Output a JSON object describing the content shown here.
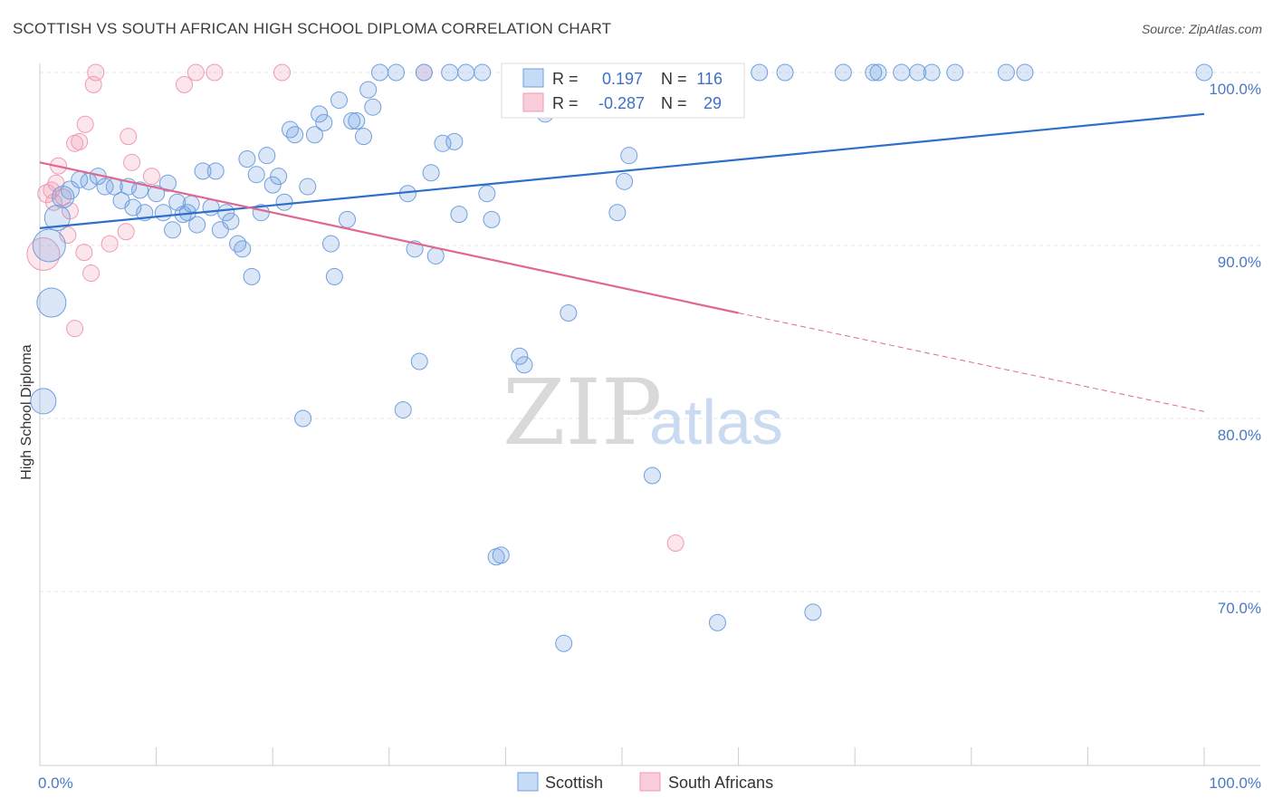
{
  "title": "SCOTTISH VS SOUTH AFRICAN HIGH SCHOOL DIPLOMA CORRELATION CHART",
  "source": "Source: ZipAtlas.com",
  "watermark": {
    "zip": "ZIP",
    "atlas": "atlas"
  },
  "colors": {
    "scottish": "#6f9fe0",
    "scottish_line": "#2f6fcc",
    "south_african": "#f09ab4",
    "south_african_line": "#e06890",
    "tick": "#4a79c8"
  },
  "chart_data": {
    "type": "scatter",
    "title": "SCOTTISH VS SOUTH AFRICAN HIGH SCHOOL DIPLOMA CORRELATION CHART",
    "xlabel": "",
    "ylabel": "High School Diploma",
    "xlim": [
      0,
      100
    ],
    "ylim": [
      60,
      100
    ],
    "x_tick_labels": [
      "0.0%",
      "100.0%"
    ],
    "y_ticks": [
      100,
      90,
      80,
      70
    ],
    "y_tick_labels": [
      "100.0%",
      "90.0%",
      "80.0%",
      "70.0%"
    ],
    "grid": true,
    "legend": {
      "placement": "top-center",
      "rows": [
        {
          "r_label": "R =",
          "r_value": "0.197",
          "n_label": "N =",
          "n_value": "116"
        },
        {
          "r_label": "R =",
          "r_value": "-0.287",
          "n_label": "N =",
          "n_value": "29"
        }
      ]
    },
    "series": [
      {
        "name": "Scottish",
        "trend": {
          "x": [
            0,
            100
          ],
          "y": [
            91.0,
            97.6
          ]
        },
        "points": [
          [
            0.3,
            81.0,
            14
          ],
          [
            0.8,
            90.0,
            18
          ],
          [
            1.0,
            86.7,
            16
          ],
          [
            1.5,
            91.6,
            14
          ],
          [
            2.0,
            92.8,
            12
          ],
          [
            2.6,
            93.2,
            10
          ],
          [
            3.4,
            93.8,
            9
          ],
          [
            4.2,
            93.7,
            9
          ],
          [
            5.0,
            94.0,
            9
          ],
          [
            5.6,
            93.4,
            9
          ],
          [
            6.4,
            93.4,
            9
          ],
          [
            7.0,
            92.6,
            9
          ],
          [
            7.6,
            93.4,
            9
          ],
          [
            8.0,
            92.2,
            9
          ],
          [
            8.6,
            93.2,
            9
          ],
          [
            9.0,
            91.9,
            9
          ],
          [
            10.0,
            93.0,
            9
          ],
          [
            10.6,
            91.9,
            9
          ],
          [
            11.0,
            93.6,
            9
          ],
          [
            11.4,
            90.9,
            9
          ],
          [
            11.8,
            92.5,
            9
          ],
          [
            12.3,
            91.8,
            9
          ],
          [
            12.7,
            91.9,
            9
          ],
          [
            13.0,
            92.4,
            9
          ],
          [
            13.5,
            91.2,
            9
          ],
          [
            14.0,
            94.3,
            9
          ],
          [
            14.7,
            92.2,
            9
          ],
          [
            15.1,
            94.3,
            9
          ],
          [
            15.5,
            90.9,
            9
          ],
          [
            16.0,
            91.9,
            9
          ],
          [
            16.4,
            91.4,
            9
          ],
          [
            17.0,
            90.1,
            9
          ],
          [
            17.4,
            89.8,
            9
          ],
          [
            17.8,
            95.0,
            9
          ],
          [
            18.2,
            88.2,
            9
          ],
          [
            18.6,
            94.1,
            9
          ],
          [
            19.0,
            91.9,
            9
          ],
          [
            19.5,
            95.2,
            9
          ],
          [
            20.0,
            93.5,
            9
          ],
          [
            20.5,
            94.0,
            9
          ],
          [
            21.0,
            92.5,
            9
          ],
          [
            21.5,
            96.7,
            9
          ],
          [
            21.9,
            96.4,
            9
          ],
          [
            22.6,
            80.0,
            9
          ],
          [
            23.0,
            93.4,
            9
          ],
          [
            23.6,
            96.4,
            9
          ],
          [
            24.0,
            97.6,
            9
          ],
          [
            24.4,
            97.1,
            9
          ],
          [
            25.0,
            90.1,
            9
          ],
          [
            25.3,
            88.2,
            9
          ],
          [
            25.7,
            98.4,
            9
          ],
          [
            26.4,
            91.5,
            9
          ],
          [
            26.8,
            97.2,
            9
          ],
          [
            27.2,
            97.2,
            9
          ],
          [
            27.8,
            96.3,
            9
          ],
          [
            28.2,
            99.0,
            9
          ],
          [
            28.6,
            98.0,
            9
          ],
          [
            29.2,
            100.0,
            9
          ],
          [
            30.6,
            100.0,
            9
          ],
          [
            31.2,
            80.5,
            9
          ],
          [
            31.6,
            93.0,
            9
          ],
          [
            32.2,
            89.8,
            9
          ],
          [
            32.6,
            83.3,
            9
          ],
          [
            33.0,
            100.0,
            9
          ],
          [
            33.6,
            94.2,
            9
          ],
          [
            34.0,
            89.4,
            9
          ],
          [
            34.6,
            95.9,
            9
          ],
          [
            35.2,
            100.0,
            9
          ],
          [
            35.6,
            96.0,
            9
          ],
          [
            36.0,
            91.8,
            9
          ],
          [
            36.6,
            100.0,
            9
          ],
          [
            38.0,
            100.0,
            9
          ],
          [
            38.4,
            93.0,
            9
          ],
          [
            38.8,
            91.5,
            9
          ],
          [
            39.2,
            72.0,
            9
          ],
          [
            39.6,
            72.1,
            9
          ],
          [
            40.8,
            100.0,
            9
          ],
          [
            41.2,
            83.6,
            9
          ],
          [
            41.6,
            83.1,
            9
          ],
          [
            42.8,
            100.0,
            9
          ],
          [
            43.4,
            97.6,
            9
          ],
          [
            44.0,
            100.0,
            9
          ],
          [
            45.0,
            67.0,
            9
          ],
          [
            45.4,
            86.1,
            9
          ],
          [
            46.0,
            100.0,
            9
          ],
          [
            46.8,
            100.0,
            9
          ],
          [
            48.0,
            100.0,
            9
          ],
          [
            49.0,
            97.9,
            9
          ],
          [
            49.6,
            91.9,
            9
          ],
          [
            50.6,
            95.2,
            9
          ],
          [
            50.2,
            93.7,
            9
          ],
          [
            52.0,
            100.0,
            9
          ],
          [
            52.6,
            76.7,
            9
          ],
          [
            53.6,
            100.0,
            9
          ],
          [
            55.2,
            100.0,
            9
          ],
          [
            56.0,
            100.0,
            9
          ],
          [
            58.2,
            68.2,
            9
          ],
          [
            59.4,
            100.0,
            9
          ],
          [
            61.8,
            100.0,
            9
          ],
          [
            64.0,
            100.0,
            9
          ],
          [
            66.4,
            68.8,
            9
          ],
          [
            69.0,
            100.0,
            9
          ],
          [
            71.6,
            100.0,
            9
          ],
          [
            72.0,
            100.0,
            9
          ],
          [
            74.0,
            100.0,
            9
          ],
          [
            75.4,
            100.0,
            9
          ],
          [
            76.6,
            100.0,
            9
          ],
          [
            78.6,
            100.0,
            9
          ],
          [
            83.0,
            100.0,
            9
          ],
          [
            84.6,
            100.0,
            9
          ],
          [
            100.0,
            100.0,
            9
          ],
          [
            43.2,
            98.4,
            9
          ],
          [
            47.4,
            100.0,
            9
          ],
          [
            56.8,
            100.0,
            9
          ],
          [
            51.2,
            100.0,
            9
          ],
          [
            42.6,
            100.0,
            9
          ]
        ]
      },
      {
        "name": "South Africans",
        "trend": {
          "x": [
            0,
            60
          ],
          "y": [
            94.8,
            86.1
          ]
        },
        "trend_dashed": {
          "x": [
            60,
            100
          ],
          "y": [
            86.1,
            80.4
          ]
        },
        "points": [
          [
            0.3,
            89.5,
            18
          ],
          [
            0.6,
            93.0,
            10
          ],
          [
            1.0,
            93.2,
            9
          ],
          [
            1.2,
            92.5,
            9
          ],
          [
            1.4,
            93.6,
            9
          ],
          [
            1.6,
            94.6,
            9
          ],
          [
            2.0,
            92.8,
            9
          ],
          [
            2.4,
            90.6,
            9
          ],
          [
            2.6,
            92.0,
            9
          ],
          [
            3.0,
            95.9,
            9
          ],
          [
            3.0,
            85.2,
            9
          ],
          [
            3.4,
            96.0,
            9
          ],
          [
            3.8,
            89.6,
            9
          ],
          [
            3.9,
            97.0,
            9
          ],
          [
            4.4,
            88.4,
            9
          ],
          [
            4.6,
            99.3,
            9
          ],
          [
            4.8,
            100.0,
            9
          ],
          [
            6.0,
            90.1,
            9
          ],
          [
            7.4,
            90.8,
            9
          ],
          [
            7.6,
            96.3,
            9
          ],
          [
            7.9,
            94.8,
            9
          ],
          [
            9.6,
            94.0,
            9
          ],
          [
            12.4,
            99.3,
            9
          ],
          [
            13.4,
            100.0,
            9
          ],
          [
            15.0,
            100.0,
            9
          ],
          [
            20.8,
            100.0,
            9
          ],
          [
            33.0,
            100.0,
            9
          ],
          [
            54.0,
            98.0,
            9
          ],
          [
            54.6,
            72.8,
            9
          ]
        ]
      }
    ]
  },
  "bottom_legend": [
    {
      "label": "Scottish"
    },
    {
      "label": "South Africans"
    }
  ]
}
